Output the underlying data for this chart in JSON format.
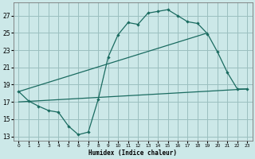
{
  "xlabel": "Humidex (Indice chaleur)",
  "xlim": [
    -0.5,
    23.5
  ],
  "ylim": [
    12.5,
    28.5
  ],
  "yticks": [
    13,
    15,
    17,
    19,
    21,
    23,
    25,
    27
  ],
  "xticks": [
    0,
    1,
    2,
    3,
    4,
    5,
    6,
    7,
    8,
    9,
    10,
    11,
    12,
    13,
    14,
    15,
    16,
    17,
    18,
    19,
    20,
    21,
    22,
    23
  ],
  "bg_color": "#cce8e8",
  "grid_color": "#9bbfbf",
  "line_color": "#1a6b60",
  "line1_x": [
    0,
    1,
    2,
    3,
    4,
    5,
    6,
    7,
    8,
    9,
    10,
    11,
    12,
    13,
    14,
    15,
    16,
    17,
    18,
    19,
    20,
    21,
    22,
    23
  ],
  "line1_y": [
    18.2,
    17.1,
    16.5,
    16.0,
    15.8,
    14.2,
    13.2,
    13.5,
    17.3,
    22.2,
    24.8,
    26.2,
    26.0,
    27.3,
    27.5,
    27.7,
    27.0,
    26.3,
    26.1,
    24.9,
    22.8,
    20.4,
    18.5,
    18.5
  ],
  "line2_x": [
    0,
    23
  ],
  "line2_y": [
    17.0,
    18.5
  ],
  "line3_x": [
    0,
    19
  ],
  "line3_y": [
    18.2,
    25.0
  ]
}
